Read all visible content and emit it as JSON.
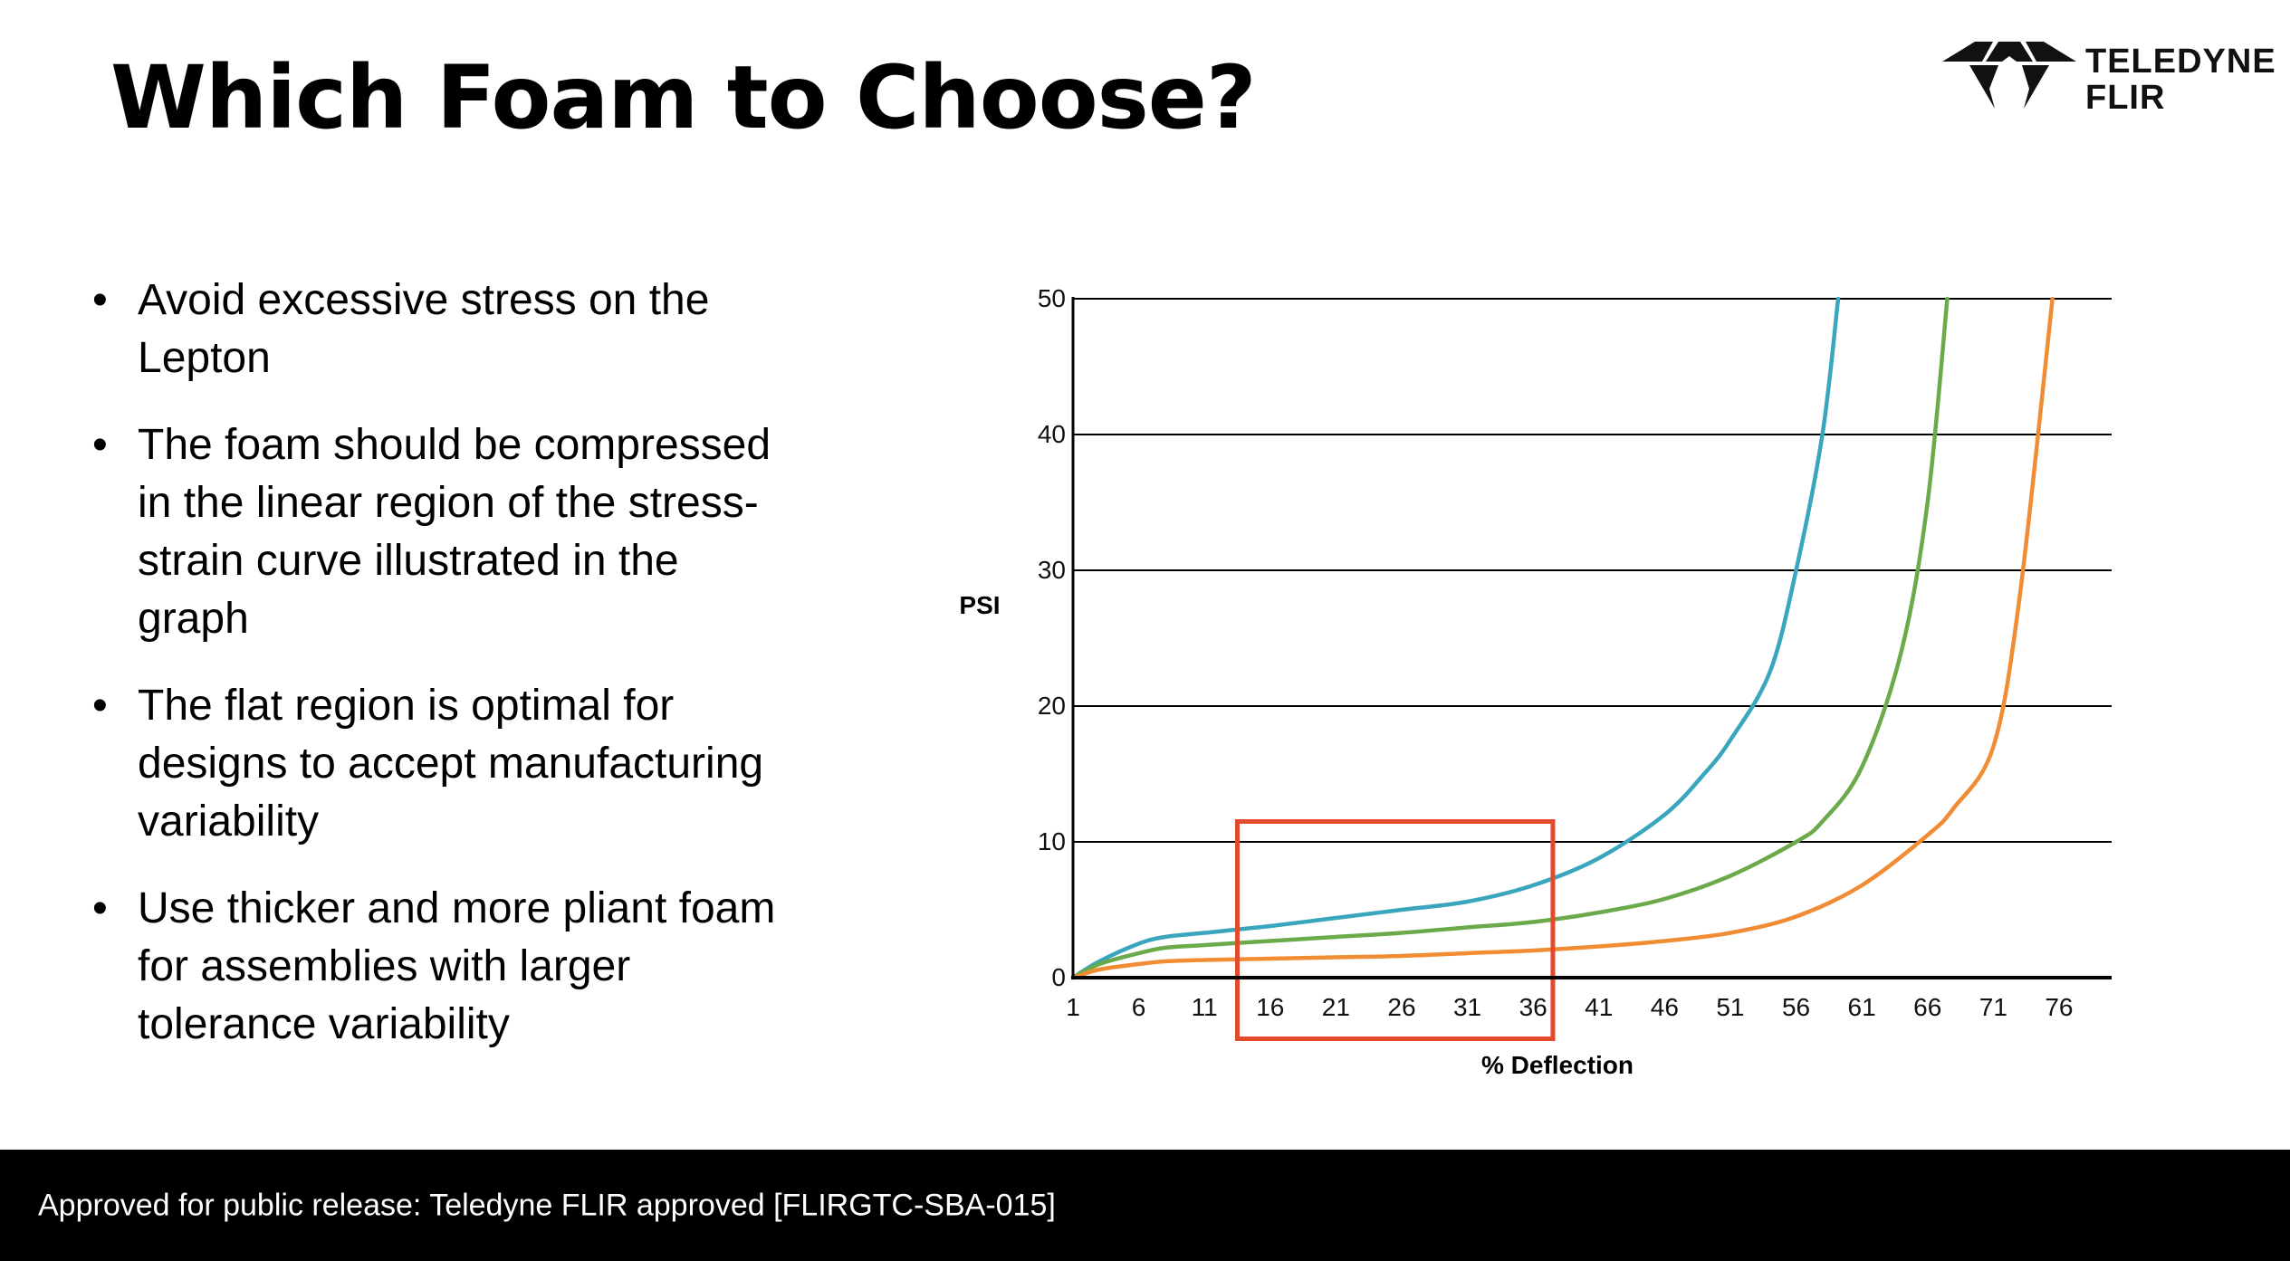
{
  "slide": {
    "title": "Which Foam to Choose?"
  },
  "logo": {
    "line1": "TELEDYNE",
    "line2": "FLIR"
  },
  "bullets": [
    "Avoid excessive stress on the Lepton",
    "The foam should be compressed in the linear region of the stress-strain curve illustrated in the graph",
    "The flat region is optimal for designs to accept manufacturing variability",
    "Use thicker and more pliant foam for assemblies with larger tolerance variability"
  ],
  "footer": {
    "text": "Approved for public release: Teledyne FLIR approved [FLIRGTC-SBA-015]"
  },
  "colors": {
    "teal": "#3aa6bd",
    "green": "#6aaa4a",
    "orange": "#f08c33",
    "highlight_box": "#e24a2e",
    "gridline": "#000000"
  },
  "chart_data": {
    "type": "line",
    "title": "",
    "xlabel": "% Deflection",
    "ylabel": "PSI",
    "xlim": [
      1,
      80
    ],
    "ylim": [
      0,
      50
    ],
    "x_ticks": [
      1,
      6,
      11,
      16,
      21,
      26,
      31,
      36,
      41,
      46,
      51,
      56,
      61,
      66,
      71,
      76
    ],
    "y_ticks": [
      0,
      10,
      20,
      30,
      40,
      50
    ],
    "grid": "horizontal",
    "legend": "none",
    "series": [
      {
        "color": "#3aa6bd",
        "x": [
          1,
          3,
          6,
          8,
          11,
          16,
          21,
          26,
          31,
          36,
          41,
          46,
          49,
          51,
          54,
          56,
          58,
          59.2
        ],
        "y": [
          0,
          1.2,
          2.5,
          3.0,
          3.3,
          3.8,
          4.4,
          5.0,
          5.6,
          6.8,
          8.8,
          12.0,
          15.0,
          17.5,
          22.5,
          30.0,
          40.0,
          50.0
        ]
      },
      {
        "color": "#6aaa4a",
        "x": [
          1,
          3,
          6,
          8,
          11,
          16,
          21,
          26,
          31,
          36,
          41,
          46,
          51,
          56,
          58,
          61,
          64,
          66,
          67.5
        ],
        "y": [
          0,
          1.0,
          1.8,
          2.2,
          2.4,
          2.7,
          3.0,
          3.3,
          3.7,
          4.1,
          4.8,
          5.8,
          7.5,
          10.0,
          11.5,
          15.5,
          24.0,
          35.0,
          50.0
        ]
      },
      {
        "color": "#f08c33",
        "x": [
          1,
          3,
          6,
          8,
          11,
          16,
          21,
          26,
          31,
          36,
          41,
          46,
          51,
          56,
          61,
          66,
          68,
          71,
          73,
          75.5
        ],
        "y": [
          0,
          0.6,
          1.0,
          1.2,
          1.3,
          1.4,
          1.5,
          1.6,
          1.8,
          2.0,
          2.3,
          2.7,
          3.3,
          4.5,
          6.8,
          10.5,
          12.5,
          17.0,
          28.0,
          50.0
        ]
      }
    ],
    "highlight_region": {
      "x": [
        13.5,
        37.5
      ],
      "y": [
        -4.5,
        11.5
      ]
    }
  }
}
